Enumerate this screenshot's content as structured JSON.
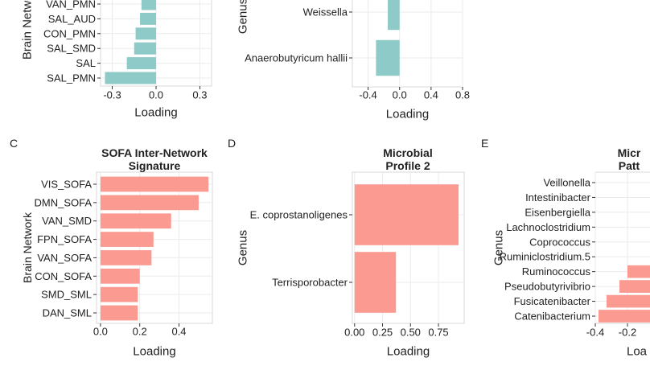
{
  "chart_data": [
    {
      "panel": "",
      "type": "bar",
      "orientation": "horizontal",
      "title": "",
      "xlabel": "Loading",
      "ylabel": "Brain Network",
      "categories": [
        "VAN_PMN",
        "SAL_AUD",
        "CON_PMN",
        "SAL_SMD",
        "SAL",
        "SAL_PMN"
      ],
      "values": [
        -0.1,
        -0.11,
        -0.14,
        -0.15,
        -0.2,
        -0.35
      ],
      "xticks": [
        "-0.3",
        "0.0",
        "0.3"
      ],
      "xlim": [
        -0.38,
        0.38
      ],
      "color": "#8ecbc8"
    },
    {
      "panel": "",
      "type": "bar",
      "orientation": "horizontal",
      "title": "",
      "xlabel": "Loading",
      "ylabel": "Genus",
      "categories": [
        "Weissella",
        "Anaerobutyricum hallii"
      ],
      "values": [
        -0.15,
        -0.3
      ],
      "xticks": [
        "-0.4",
        "0.0",
        "0.4",
        "0.8"
      ],
      "xlim": [
        -0.6,
        0.8
      ],
      "color": "#8ecbc8"
    },
    {
      "panel": "C",
      "type": "bar",
      "orientation": "horizontal",
      "title": "SOFA Inter-Network Signature",
      "title_lines": [
        "SOFA Inter-Network",
        "Signature"
      ],
      "xlabel": "Loading",
      "ylabel": "Brain Network",
      "categories": [
        "VIS_SOFA",
        "DMN_SOFA",
        "VAN_SMD",
        "FPN_SOFA",
        "VAN_SOFA",
        "CON_SOFA",
        "SMD_SML",
        "DAN_SML"
      ],
      "values": [
        0.55,
        0.5,
        0.36,
        0.27,
        0.26,
        0.2,
        0.19,
        0.19
      ],
      "xticks": [
        "0.0",
        "0.2",
        "0.4"
      ],
      "xlim": [
        -0.02,
        0.57
      ],
      "color": "#fa9a90"
    },
    {
      "panel": "D",
      "type": "bar",
      "orientation": "horizontal",
      "title": "Microbial Profile 2",
      "title_lines": [
        "Microbial",
        "Profile 2"
      ],
      "xlabel": "Loading",
      "ylabel": "Genus",
      "categories": [
        "E. coprostanoligenes",
        "Terrisporobacter"
      ],
      "values": [
        0.93,
        0.37
      ],
      "xticks": [
        "0.00",
        "0.25",
        "0.50",
        "0.75"
      ],
      "xlim": [
        -0.02,
        0.98
      ],
      "color": "#fa9a90"
    },
    {
      "panel": "E",
      "type": "bar",
      "orientation": "horizontal",
      "title": "Micr… Patt…",
      "title_lines": [
        "Micr",
        "Patt"
      ],
      "xlabel": "Loa",
      "ylabel": "Genus",
      "categories": [
        "Veillonella",
        "Intestinibacter",
        "Eisenbergiella",
        "Lachnoclostridium",
        "Coprococcus",
        "Ruminiclostridium.5",
        "Ruminococcus",
        "Pseudobutyrivibrio",
        "Fusicatenibacter",
        "Catenibacterium"
      ],
      "values": [
        0,
        0,
        0,
        0,
        0,
        0,
        -0.2,
        -0.25,
        -0.33,
        -0.38
      ],
      "xticks": [
        "-0.4",
        "-0.2"
      ],
      "xlim": [
        -0.4,
        0.0
      ],
      "color": "#fa9a90"
    }
  ]
}
